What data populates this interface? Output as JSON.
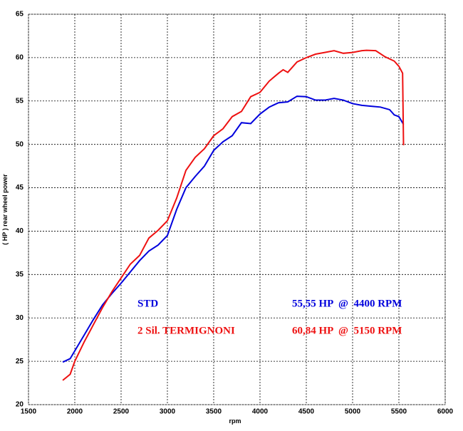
{
  "chart_data": {
    "type": "line",
    "xlabel": "rpm",
    "ylabel": "( HP )  rear wheel power",
    "xlim": [
      1500,
      6000
    ],
    "xticks": [
      1500,
      2000,
      2500,
      3000,
      3500,
      4000,
      4500,
      5000,
      5500,
      6000
    ],
    "ylim": [
      20,
      65
    ],
    "yticks": [
      20,
      25,
      30,
      35,
      40,
      45,
      50,
      55,
      60,
      65
    ],
    "grid": true,
    "series": [
      {
        "name": "STD",
        "color": "#0000dd",
        "peak": "55,55 HP  @  4400 RPM",
        "x": [
          1870,
          1950,
          2000,
          2100,
          2200,
          2300,
          2400,
          2500,
          2600,
          2700,
          2800,
          2900,
          3000,
          3100,
          3200,
          3300,
          3400,
          3500,
          3600,
          3700,
          3800,
          3900,
          4000,
          4100,
          4200,
          4300,
          4400,
          4500,
          4600,
          4700,
          4800,
          4900,
          5000,
          5100,
          5200,
          5300,
          5400,
          5450,
          5500,
          5550
        ],
        "values": [
          24.9,
          25.3,
          26.2,
          28,
          29.8,
          31.5,
          32.8,
          34,
          35.3,
          36.6,
          37.7,
          38.4,
          39.5,
          42.5,
          45,
          46.3,
          47.5,
          49.3,
          50.3,
          51,
          52.5,
          52.4,
          53.5,
          54.3,
          54.8,
          54.9,
          55.55,
          55.5,
          55.1,
          55.1,
          55.3,
          55.1,
          54.7,
          54.5,
          54.4,
          54.3,
          54,
          53.4,
          53.2,
          52.3
        ]
      },
      {
        "name": "2 Sil. TERMIGNONI",
        "color": "#ee1111",
        "peak": "60,84 HP  @  5150 RPM",
        "x": [
          1870,
          1950,
          2000,
          2100,
          2200,
          2300,
          2400,
          2500,
          2600,
          2700,
          2800,
          2900,
          3000,
          3100,
          3200,
          3300,
          3400,
          3500,
          3600,
          3700,
          3800,
          3900,
          4000,
          4100,
          4200,
          4250,
          4300,
          4400,
          4500,
          4600,
          4700,
          4800,
          4900,
          5000,
          5100,
          5150,
          5250,
          5350,
          5450,
          5500,
          5540,
          5550
        ],
        "values": [
          22.8,
          23.5,
          25,
          27.2,
          29.2,
          31.2,
          33,
          34.6,
          36.2,
          37.2,
          39.2,
          40.1,
          41.2,
          43.8,
          47,
          48.5,
          49.5,
          51,
          51.8,
          53.2,
          53.8,
          55.5,
          56,
          57.3,
          58.2,
          58.6,
          58.3,
          59.5,
          60,
          60.4,
          60.6,
          60.8,
          60.5,
          60.6,
          60.8,
          60.84,
          60.8,
          60.1,
          59.6,
          59,
          58.2,
          49.9
        ]
      }
    ]
  }
}
